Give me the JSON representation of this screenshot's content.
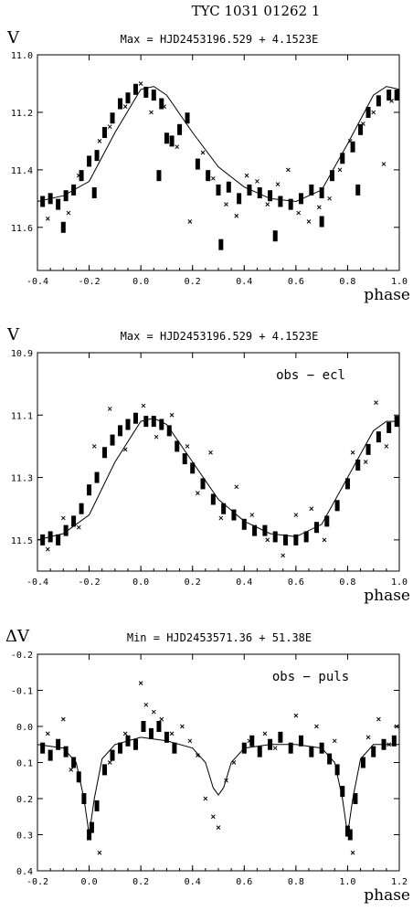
{
  "figure_title": "TYC 1031 01262 1",
  "chart_data": [
    {
      "type": "scatter",
      "ylabel": "V",
      "title": "Max = HJD2453196.529 + 4.1523E",
      "annotation": "",
      "xlabel": "phase",
      "xlim": [
        -0.4,
        1.0
      ],
      "ylim": [
        11.0,
        11.75
      ],
      "y_inverted": true,
      "xticks": [
        "-0.4",
        "-0.2",
        "0.0",
        "0.2",
        "0.4",
        "0.6",
        "0.8",
        "1.0"
      ],
      "xtick_values": [
        -0.4,
        -0.2,
        0.0,
        0.2,
        0.4,
        0.6,
        0.8,
        1.0
      ],
      "yticks": [
        "11.0",
        "11.2",
        "11.4",
        "11.6"
      ],
      "ytick_values": [
        11.0,
        11.2,
        11.4,
        11.6
      ],
      "model_curve": {
        "x": [
          -0.4,
          -0.3,
          -0.2,
          -0.1,
          0.0,
          0.05,
          0.1,
          0.2,
          0.3,
          0.4,
          0.5,
          0.6,
          0.7,
          0.8,
          0.9,
          0.95,
          1.0
        ],
        "y": [
          11.51,
          11.49,
          11.44,
          11.27,
          11.12,
          11.11,
          11.14,
          11.27,
          11.39,
          11.46,
          11.5,
          11.51,
          11.47,
          11.31,
          11.14,
          11.11,
          11.12
        ]
      },
      "series": [
        {
          "marker": "filled-square",
          "x": [
            -0.38,
            -0.35,
            -0.32,
            -0.29,
            -0.26,
            -0.23,
            -0.2,
            -0.17,
            -0.14,
            -0.11,
            -0.08,
            -0.05,
            -0.02,
            0.02,
            0.05,
            0.08,
            0.1,
            0.12,
            0.15,
            0.18,
            0.22,
            0.26,
            0.3,
            0.34,
            0.38,
            0.42,
            0.46,
            0.5,
            0.54,
            0.58,
            0.62,
            0.66,
            0.7,
            0.74,
            0.78,
            0.82,
            0.85,
            0.88,
            0.92,
            0.96,
            0.99,
            -0.3,
            -0.18,
            0.07,
            0.31,
            0.52,
            0.7,
            0.84
          ],
          "y": [
            11.51,
            11.5,
            11.52,
            11.49,
            11.47,
            11.42,
            11.37,
            11.35,
            11.27,
            11.22,
            11.17,
            11.15,
            11.12,
            11.13,
            11.14,
            11.17,
            11.29,
            11.3,
            11.26,
            11.22,
            11.38,
            11.42,
            11.47,
            11.46,
            11.5,
            11.47,
            11.48,
            11.49,
            11.51,
            11.52,
            11.5,
            11.47,
            11.48,
            11.42,
            11.36,
            11.32,
            11.26,
            11.2,
            11.16,
            11.14,
            11.14,
            11.6,
            11.48,
            11.42,
            11.66,
            11.63,
            11.58,
            11.47
          ]
        },
        {
          "marker": "cross",
          "x": [
            -0.36,
            -0.28,
            -0.24,
            -0.16,
            -0.12,
            -0.06,
            0.0,
            0.04,
            0.09,
            0.14,
            0.19,
            0.24,
            0.28,
            0.33,
            0.37,
            0.41,
            0.45,
            0.49,
            0.53,
            0.57,
            0.61,
            0.65,
            0.69,
            0.73,
            0.77,
            0.81,
            0.86,
            0.9,
            0.94,
            0.97
          ],
          "y": [
            11.57,
            11.55,
            11.42,
            11.3,
            11.25,
            11.18,
            11.1,
            11.2,
            11.18,
            11.32,
            11.58,
            11.34,
            11.43,
            11.52,
            11.56,
            11.42,
            11.44,
            11.52,
            11.45,
            11.4,
            11.55,
            11.58,
            11.53,
            11.5,
            11.4,
            11.3,
            11.24,
            11.2,
            11.38,
            11.16
          ]
        }
      ]
    },
    {
      "type": "scatter",
      "ylabel": "V",
      "title": "Max = HJD2453196.529 + 4.1523E",
      "annotation": "obs − ecl",
      "xlabel": "phase",
      "xlim": [
        -0.4,
        1.0
      ],
      "ylim": [
        10.9,
        11.6
      ],
      "y_inverted": true,
      "xticks": [
        "-0.4",
        "-0.2",
        "0.0",
        "0.2",
        "0.4",
        "0.6",
        "0.8",
        "1.0"
      ],
      "xtick_values": [
        -0.4,
        -0.2,
        0.0,
        0.2,
        0.4,
        0.6,
        0.8,
        1.0
      ],
      "yticks": [
        "10.9",
        "11.1",
        "11.3",
        "11.5"
      ],
      "ytick_values": [
        10.9,
        11.1,
        11.3,
        11.5
      ],
      "model_curve": {
        "x": [
          -0.4,
          -0.3,
          -0.2,
          -0.1,
          0.0,
          0.05,
          0.1,
          0.2,
          0.3,
          0.4,
          0.5,
          0.6,
          0.7,
          0.8,
          0.9,
          0.95,
          1.0
        ],
        "y": [
          11.5,
          11.48,
          11.42,
          11.25,
          11.12,
          11.11,
          11.13,
          11.25,
          11.37,
          11.44,
          11.48,
          11.49,
          11.45,
          11.3,
          11.15,
          11.12,
          11.12
        ]
      },
      "series": [
        {
          "marker": "filled-square",
          "x": [
            -0.38,
            -0.35,
            -0.32,
            -0.29,
            -0.26,
            -0.23,
            -0.2,
            -0.17,
            -0.14,
            -0.11,
            -0.08,
            -0.05,
            -0.02,
            0.02,
            0.05,
            0.08,
            0.11,
            0.14,
            0.17,
            0.2,
            0.24,
            0.28,
            0.32,
            0.36,
            0.4,
            0.44,
            0.48,
            0.52,
            0.56,
            0.6,
            0.64,
            0.68,
            0.72,
            0.76,
            0.8,
            0.84,
            0.88,
            0.92,
            0.96,
            0.99
          ],
          "y": [
            11.5,
            11.49,
            11.5,
            11.47,
            11.44,
            11.4,
            11.34,
            11.3,
            11.22,
            11.18,
            11.15,
            11.13,
            11.11,
            11.12,
            11.12,
            11.13,
            11.15,
            11.2,
            11.24,
            11.27,
            11.32,
            11.37,
            11.4,
            11.42,
            11.45,
            11.47,
            11.47,
            11.49,
            11.5,
            11.5,
            11.49,
            11.46,
            11.44,
            11.39,
            11.32,
            11.26,
            11.21,
            11.17,
            11.14,
            11.12
          ]
        },
        {
          "marker": "cross",
          "x": [
            -0.36,
            -0.3,
            -0.24,
            -0.18,
            -0.12,
            -0.06,
            0.01,
            0.06,
            0.12,
            0.18,
            0.22,
            0.27,
            0.31,
            0.37,
            0.43,
            0.49,
            0.55,
            0.6,
            0.66,
            0.71,
            0.76,
            0.82,
            0.87,
            0.91,
            0.95
          ],
          "y": [
            11.53,
            11.43,
            11.46,
            11.2,
            11.08,
            11.21,
            11.07,
            11.17,
            11.1,
            11.2,
            11.35,
            11.22,
            11.43,
            11.33,
            11.42,
            11.5,
            11.55,
            11.42,
            11.4,
            11.5,
            11.38,
            11.22,
            11.25,
            11.06,
            11.2
          ]
        }
      ]
    },
    {
      "type": "scatter",
      "ylabel": "ΔV",
      "title": "Min = HJD2453571.36 + 51.38E",
      "annotation": "obs − puls",
      "xlabel": "phase",
      "xlim": [
        -0.2,
        1.2
      ],
      "ylim": [
        -0.2,
        0.4
      ],
      "y_inverted": true,
      "xticks": [
        "-0.2",
        "0.0",
        "0.2",
        "0.4",
        "0.6",
        "0.8",
        "1.0",
        "1.2"
      ],
      "xtick_values": [
        -0.2,
        0.0,
        0.2,
        0.4,
        0.6,
        0.8,
        1.0,
        1.2
      ],
      "yticks": [
        "-0.2",
        "-0.1",
        "0.0",
        "0.1",
        "0.2",
        "0.3",
        "0.4"
      ],
      "ytick_values": [
        -0.2,
        -0.1,
        0.0,
        0.1,
        0.2,
        0.3,
        0.4
      ],
      "model_curve": {
        "x": [
          -0.2,
          -0.1,
          -0.05,
          -0.02,
          0.0,
          0.02,
          0.05,
          0.1,
          0.2,
          0.3,
          0.4,
          0.45,
          0.48,
          0.5,
          0.52,
          0.55,
          0.6,
          0.7,
          0.8,
          0.9,
          0.95,
          0.98,
          1.0,
          1.02,
          1.05,
          1.1,
          1.2
        ],
        "y": [
          0.05,
          0.06,
          0.1,
          0.2,
          0.3,
          0.2,
          0.09,
          0.05,
          0.03,
          0.04,
          0.06,
          0.1,
          0.17,
          0.19,
          0.17,
          0.1,
          0.06,
          0.05,
          0.05,
          0.06,
          0.1,
          0.2,
          0.3,
          0.2,
          0.09,
          0.05,
          0.05
        ]
      },
      "series": [
        {
          "marker": "filled-square",
          "x": [
            -0.18,
            -0.15,
            -0.12,
            -0.09,
            -0.06,
            -0.04,
            -0.02,
            0.0,
            0.01,
            0.03,
            0.06,
            0.09,
            0.12,
            0.15,
            0.18,
            0.21,
            0.24,
            0.27,
            0.3,
            0.33,
            0.6,
            0.63,
            0.66,
            0.7,
            0.74,
            0.78,
            0.82,
            0.86,
            0.9,
            0.93,
            0.96,
            0.98,
            1.0,
            1.01,
            1.03,
            1.06,
            1.1,
            1.14,
            1.18
          ],
          "y": [
            0.06,
            0.08,
            0.05,
            0.07,
            0.1,
            0.14,
            0.2,
            0.3,
            0.28,
            0.22,
            0.12,
            0.08,
            0.06,
            0.04,
            0.05,
            0.0,
            0.02,
            0.0,
            0.03,
            0.06,
            0.06,
            0.04,
            0.07,
            0.05,
            0.03,
            0.06,
            0.04,
            0.07,
            0.06,
            0.09,
            0.12,
            0.18,
            0.29,
            0.3,
            0.2,
            0.1,
            0.07,
            0.05,
            0.04
          ]
        },
        {
          "marker": "cross",
          "x": [
            -0.16,
            -0.1,
            -0.07,
            0.04,
            0.08,
            0.14,
            0.2,
            0.22,
            0.25,
            0.28,
            0.32,
            0.36,
            0.39,
            0.42,
            0.45,
            0.48,
            0.5,
            0.53,
            0.56,
            0.62,
            0.68,
            0.72,
            0.8,
            0.88,
            0.95,
            1.02,
            1.08,
            1.12,
            1.16,
            1.19
          ],
          "y": [
            0.02,
            -0.02,
            0.12,
            0.35,
            0.1,
            0.02,
            -0.12,
            -0.06,
            -0.04,
            -0.02,
            0.02,
            0.0,
            0.04,
            0.08,
            0.2,
            0.25,
            0.28,
            0.15,
            0.1,
            0.04,
            0.02,
            0.06,
            -0.03,
            0.0,
            0.04,
            0.35,
            0.03,
            -0.02,
            0.05,
            0.0
          ]
        }
      ]
    }
  ]
}
